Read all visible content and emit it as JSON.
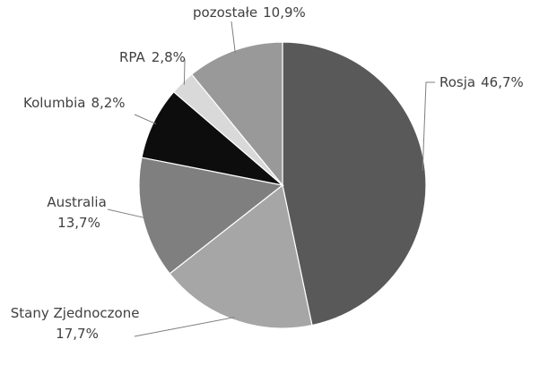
{
  "chart_data": {
    "type": "pie",
    "title": "",
    "slices": [
      {
        "label": "Rosja",
        "value": 46.7,
        "value_text": "46,7%",
        "color": "#595959"
      },
      {
        "label": "Stany Zjednoczone",
        "value": 17.7,
        "value_text": "17,7%",
        "color": "#a6a6a6"
      },
      {
        "label": "Australia",
        "value": 13.7,
        "value_text": "13,7%",
        "color": "#7f7f7f"
      },
      {
        "label": "Kolumbia",
        "value": 8.2,
        "value_text": "8,2%",
        "color": "#0d0d0d"
      },
      {
        "label": "RPA",
        "value": 2.8,
        "value_text": "2,8%",
        "color": "#d9d9d9"
      },
      {
        "label": "pozostałe",
        "value": 10.9,
        "value_text": "10,9%",
        "color": "#999999"
      }
    ],
    "start_angle_deg": 0,
    "direction": "clockwise",
    "legend": "none",
    "data_labels": "outside with leader lines"
  }
}
